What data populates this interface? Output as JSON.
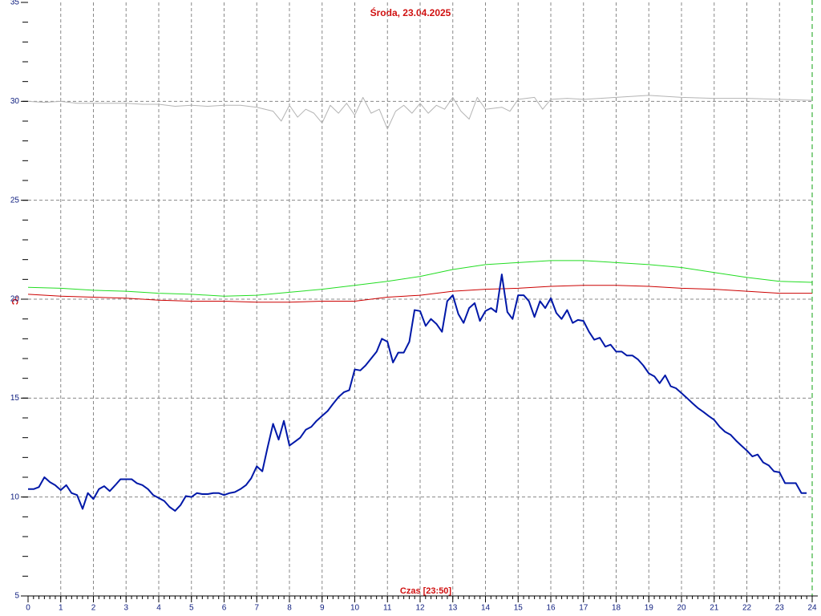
{
  "chart_data": {
    "type": "line",
    "title": "Środa, 23.04.2025",
    "xlabel": "Czas [23:50]",
    "ylabel": "°C",
    "xlim": [
      0,
      24
    ],
    "ylim": [
      5,
      35
    ],
    "xticks": [
      0,
      1,
      2,
      3,
      4,
      5,
      6,
      7,
      8,
      9,
      10,
      11,
      12,
      13,
      14,
      15,
      16,
      17,
      18,
      19,
      20,
      21,
      22,
      23,
      24
    ],
    "yticks": [
      5,
      10,
      15,
      20,
      25,
      30,
      35
    ],
    "grid": true,
    "series": [
      {
        "color": "#b4b4b4",
        "width": 1,
        "x": [
          0,
          0.5,
          1,
          1.5,
          2,
          2.5,
          3,
          3.5,
          4,
          4.5,
          5,
          5.5,
          6,
          6.5,
          7,
          7.5,
          7.75,
          8,
          8.25,
          8.5,
          8.75,
          9,
          9.25,
          9.5,
          9.75,
          10,
          10.25,
          10.5,
          10.75,
          11,
          11.25,
          11.5,
          11.75,
          12,
          12.25,
          12.5,
          12.75,
          13,
          13.25,
          13.5,
          13.75,
          14,
          14.5,
          14.75,
          15,
          15.5,
          15.75,
          16,
          16.5,
          17,
          18,
          19,
          20,
          21,
          22,
          23,
          24
        ],
        "values": [
          30.0,
          29.95,
          30.0,
          29.9,
          29.9,
          29.9,
          29.9,
          29.85,
          29.85,
          29.75,
          29.8,
          29.75,
          29.8,
          29.8,
          29.7,
          29.5,
          29.0,
          29.8,
          29.2,
          29.6,
          29.4,
          28.9,
          29.8,
          29.4,
          29.9,
          29.3,
          30.2,
          29.4,
          29.6,
          28.6,
          29.5,
          29.8,
          29.4,
          29.9,
          29.4,
          29.8,
          29.6,
          30.2,
          29.5,
          29.1,
          30.2,
          29.6,
          29.7,
          29.5,
          30.1,
          30.2,
          29.6,
          30.1,
          30.15,
          30.1,
          30.2,
          30.3,
          30.2,
          30.15,
          30.15,
          30.1,
          30.05
        ]
      },
      {
        "color": "#22dd22",
        "width": 1,
        "x": [
          0,
          1,
          2,
          3,
          4,
          5,
          6,
          7,
          8,
          9,
          10,
          11,
          12,
          13,
          14,
          15,
          16,
          17,
          18,
          19,
          20,
          21,
          22,
          23,
          24
        ],
        "values": [
          20.6,
          20.55,
          20.45,
          20.4,
          20.3,
          20.25,
          20.15,
          20.2,
          20.35,
          20.5,
          20.7,
          20.9,
          21.15,
          21.5,
          21.75,
          21.85,
          21.95,
          21.95,
          21.85,
          21.75,
          21.6,
          21.35,
          21.1,
          20.9,
          20.85
        ]
      },
      {
        "color": "#cc0000",
        "width": 1,
        "x": [
          0,
          1,
          2,
          3,
          4,
          5,
          6,
          7,
          8,
          9,
          10,
          11,
          12,
          13,
          14,
          15,
          16,
          17,
          18,
          19,
          20,
          21,
          22,
          23,
          24
        ],
        "values": [
          20.25,
          20.15,
          20.1,
          20.05,
          19.95,
          19.9,
          19.9,
          19.85,
          19.85,
          19.9,
          19.9,
          20.1,
          20.2,
          20.4,
          20.5,
          20.55,
          20.65,
          20.7,
          20.7,
          20.65,
          20.55,
          20.5,
          20.4,
          20.3,
          20.3
        ]
      },
      {
        "color": "#0018a8",
        "width": 2,
        "x": [
          0,
          0.17,
          0.33,
          0.5,
          0.67,
          0.83,
          1,
          1.17,
          1.33,
          1.5,
          1.67,
          1.83,
          2,
          2.17,
          2.33,
          2.5,
          2.67,
          2.83,
          3,
          3.17,
          3.33,
          3.5,
          3.67,
          3.83,
          4,
          4.17,
          4.33,
          4.5,
          4.67,
          4.83,
          5,
          5.17,
          5.33,
          5.5,
          5.67,
          5.83,
          6,
          6.17,
          6.33,
          6.5,
          6.67,
          6.83,
          7,
          7.17,
          7.33,
          7.5,
          7.67,
          7.83,
          8,
          8.17,
          8.33,
          8.5,
          8.67,
          8.83,
          9,
          9.17,
          9.33,
          9.5,
          9.67,
          9.83,
          10,
          10.17,
          10.33,
          10.5,
          10.67,
          10.83,
          11,
          11.17,
          11.33,
          11.5,
          11.67,
          11.83,
          12,
          12.17,
          12.33,
          12.5,
          12.67,
          12.83,
          13,
          13.17,
          13.33,
          13.5,
          13.67,
          13.83,
          14,
          14.17,
          14.33,
          14.5,
          14.67,
          14.83,
          15,
          15.17,
          15.33,
          15.5,
          15.67,
          15.83,
          16,
          16.17,
          16.33,
          16.5,
          16.67,
          16.83,
          17,
          17.17,
          17.33,
          17.5,
          17.67,
          17.83,
          18,
          18.17,
          18.33,
          18.5,
          18.67,
          18.83,
          19,
          19.17,
          19.33,
          19.5,
          19.67,
          19.83,
          20,
          20.17,
          20.33,
          20.5,
          20.67,
          20.83,
          21,
          21.17,
          21.33,
          21.5,
          21.67,
          21.83,
          22,
          22.17,
          22.33,
          22.5,
          22.67,
          22.83,
          23,
          23.17,
          23.33,
          23.5,
          23.67,
          23.83
        ],
        "values": [
          10.4,
          10.4,
          10.5,
          11.0,
          10.75,
          10.6,
          10.35,
          10.6,
          10.2,
          10.1,
          9.4,
          10.2,
          9.9,
          10.4,
          10.55,
          10.3,
          10.6,
          10.9,
          10.9,
          10.9,
          10.7,
          10.6,
          10.4,
          10.1,
          9.95,
          9.8,
          9.5,
          9.3,
          9.6,
          10.05,
          10.0,
          10.2,
          10.15,
          10.15,
          10.2,
          10.2,
          10.1,
          10.2,
          10.25,
          10.4,
          10.6,
          10.95,
          11.55,
          11.3,
          12.5,
          13.7,
          12.9,
          13.85,
          12.6,
          12.8,
          13.0,
          13.4,
          13.55,
          13.85,
          14.1,
          14.35,
          14.7,
          15.05,
          15.3,
          15.4,
          16.45,
          16.4,
          16.65,
          17.0,
          17.35,
          18.0,
          17.85,
          16.8,
          17.3,
          17.3,
          17.85,
          19.45,
          19.4,
          18.65,
          19.0,
          18.75,
          18.35,
          19.9,
          20.2,
          19.25,
          18.8,
          19.55,
          19.8,
          18.9,
          19.4,
          19.55,
          19.35,
          21.25,
          19.35,
          19.0,
          20.2,
          20.2,
          19.9,
          19.1,
          19.9,
          19.55,
          20.05,
          19.3,
          19.0,
          19.45,
          18.8,
          18.95,
          18.9,
          18.35,
          17.95,
          18.05,
          17.6,
          17.7,
          17.35,
          17.35,
          17.15,
          17.15,
          16.95,
          16.65,
          16.25,
          16.1,
          15.75,
          16.15,
          15.6,
          15.5,
          15.25,
          15.0,
          14.75,
          14.5,
          14.3,
          14.1,
          13.9,
          13.55,
          13.3,
          13.15,
          12.85,
          12.6,
          12.35,
          12.05,
          12.15,
          11.75,
          11.6,
          11.3,
          11.25,
          10.7,
          10.7,
          10.7,
          10.2,
          10.2
        ]
      }
    ]
  }
}
